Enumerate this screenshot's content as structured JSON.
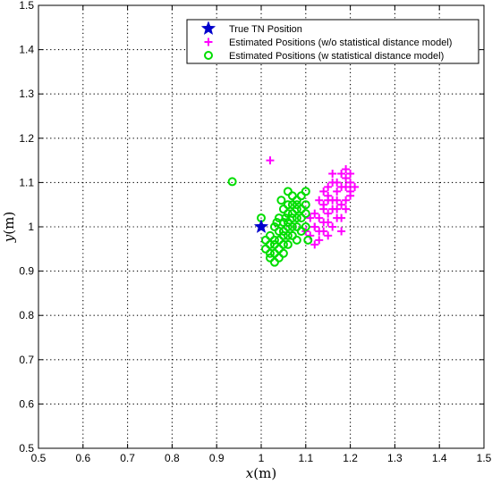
{
  "chart_data": {
    "type": "scatter",
    "title": "",
    "xlabel": "x",
    "xlabel_unit": "(m)",
    "ylabel": "y",
    "ylabel_unit": "(m)",
    "xlim": [
      0.5,
      1.5
    ],
    "ylim": [
      0.5,
      1.5
    ],
    "xticks": [
      "0.5",
      "0.6",
      "0.7",
      "0.8",
      "0.9",
      "1",
      "1.1",
      "1.2",
      "1.3",
      "1.4",
      "1.5"
    ],
    "yticks": [
      "0.5",
      "0.6",
      "0.7",
      "0.8",
      "0.9",
      "1",
      "1.1",
      "1.2",
      "1.3",
      "1.4",
      "1.5"
    ],
    "grid": true,
    "grid_style": "dotted",
    "legend_position": "top-right",
    "series": [
      {
        "name": "True TN Position",
        "marker": "star",
        "color": "#0000cc",
        "points": [
          [
            1.0,
            1.0
          ]
        ]
      },
      {
        "name": "Estimated Positions (w/o statistical distance model)",
        "marker": "plus",
        "color": "#ff00ff",
        "points": [
          [
            1.12,
            1.0
          ],
          [
            1.13,
            1.02
          ],
          [
            1.14,
            1.05
          ],
          [
            1.15,
            1.07
          ],
          [
            1.16,
            1.1
          ],
          [
            1.18,
            1.12
          ],
          [
            1.19,
            1.13
          ],
          [
            1.2,
            1.08
          ],
          [
            1.13,
            0.99
          ],
          [
            1.15,
            1.03
          ],
          [
            1.17,
            1.06
          ],
          [
            1.18,
            1.09
          ],
          [
            1.11,
            0.98
          ],
          [
            1.14,
            1.01
          ],
          [
            1.16,
            1.04
          ],
          [
            1.17,
            1.08
          ],
          [
            1.19,
            1.11
          ],
          [
            1.12,
            1.03
          ],
          [
            1.15,
            1.06
          ],
          [
            1.18,
            1.05
          ],
          [
            1.16,
            1.0
          ],
          [
            1.2,
            1.1
          ],
          [
            1.14,
            1.08
          ],
          [
            1.12,
            0.96
          ],
          [
            1.13,
            0.97
          ],
          [
            1.17,
            1.02
          ],
          [
            1.19,
            1.06
          ],
          [
            1.1,
            0.99
          ],
          [
            1.18,
            1.02
          ],
          [
            1.15,
            0.98
          ],
          [
            1.17,
            1.1
          ],
          [
            1.19,
            1.04
          ],
          [
            1.02,
            1.15
          ],
          [
            1.2,
            1.07
          ],
          [
            1.16,
            1.12
          ],
          [
            1.14,
            1.04
          ],
          [
            1.13,
            1.06
          ],
          [
            1.11,
            1.02
          ],
          [
            1.18,
            0.99
          ],
          [
            1.21,
            1.09
          ],
          [
            1.15,
            1.09
          ],
          [
            1.16,
            1.06
          ],
          [
            1.12,
            1.0
          ],
          [
            1.14,
            0.99
          ],
          [
            1.17,
            1.04
          ],
          [
            1.19,
            1.09
          ],
          [
            1.2,
            1.12
          ],
          [
            1.15,
            1.01
          ]
        ]
      },
      {
        "name": "Estimated Positions (w statistical distance model)",
        "marker": "circle",
        "color": "#00dd00",
        "points": [
          [
            0.935,
            1.102
          ],
          [
            1.0,
            1.02
          ],
          [
            1.06,
            1.08
          ],
          [
            1.1,
            1.08
          ],
          [
            1.105,
            0.97
          ],
          [
            1.01,
            0.95
          ],
          [
            1.02,
            0.93
          ],
          [
            1.03,
            0.92
          ],
          [
            1.04,
            0.95
          ],
          [
            1.05,
            0.96
          ],
          [
            1.06,
            0.98
          ],
          [
            1.07,
            1.0
          ],
          [
            1.08,
            1.02
          ],
          [
            1.09,
            1.04
          ],
          [
            1.1,
            1.05
          ],
          [
            1.03,
            0.97
          ],
          [
            1.04,
            0.99
          ],
          [
            1.05,
            1.01
          ],
          [
            1.06,
            1.03
          ],
          [
            1.07,
            1.05
          ],
          [
            1.08,
            1.06
          ],
          [
            1.02,
            0.96
          ],
          [
            1.03,
            1.0
          ],
          [
            1.05,
            0.98
          ],
          [
            1.06,
            1.0
          ],
          [
            1.07,
            1.02
          ],
          [
            1.08,
            1.0
          ],
          [
            1.09,
            1.02
          ],
          [
            1.04,
            1.02
          ],
          [
            1.05,
            1.04
          ],
          [
            1.06,
            1.05
          ],
          [
            1.07,
            1.07
          ],
          [
            1.08,
            1.04
          ],
          [
            1.09,
            1.07
          ],
          [
            1.03,
            0.94
          ],
          [
            1.04,
            0.93
          ],
          [
            1.05,
            0.94
          ],
          [
            1.02,
            0.98
          ],
          [
            1.01,
            0.97
          ],
          [
            1.03,
            0.96
          ],
          [
            1.06,
            0.96
          ],
          [
            1.07,
            0.98
          ],
          [
            1.08,
            0.97
          ],
          [
            1.1,
            1.0
          ],
          [
            1.1,
            1.03
          ],
          [
            1.09,
            0.99
          ],
          [
            1.04,
            0.97
          ],
          [
            1.05,
            0.99
          ],
          [
            1.06,
            1.01
          ],
          [
            1.07,
            1.03
          ],
          [
            1.08,
            1.05
          ],
          [
            1.02,
            0.94
          ],
          [
            1.045,
            1.06
          ],
          [
            1.035,
            1.01
          ],
          [
            1.055,
            1.02
          ]
        ]
      }
    ]
  }
}
